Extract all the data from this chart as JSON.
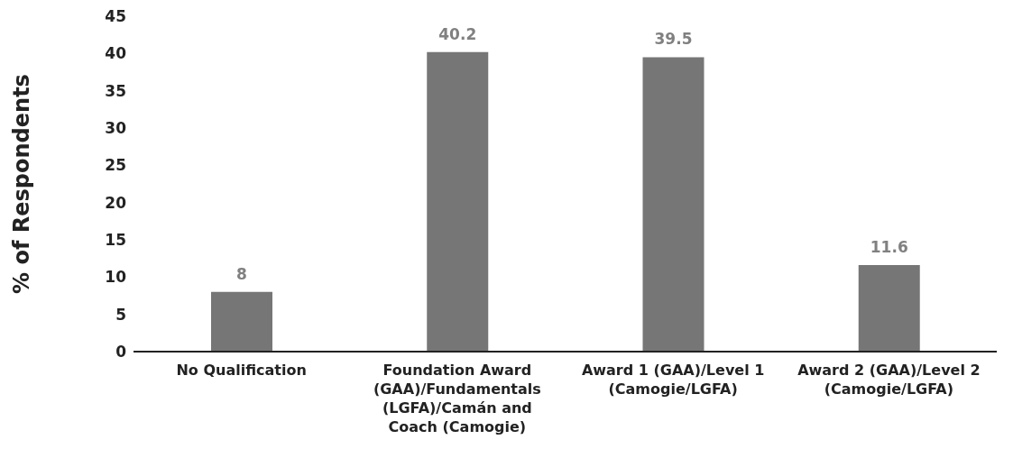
{
  "chart_data": {
    "type": "bar",
    "ylabel": "% of Respondents",
    "categories": [
      "No Qualification",
      "Foundation Award (GAA)/Fundamentals (LGFA)/Camán and Coach (Camogie)",
      "Award 1 (GAA)/Level 1 (Camogie/LGFA)",
      "Award 2 (GAA)/Level 2 (Camogie/LGFA)"
    ],
    "values": [
      8,
      40.2,
      39.5,
      11.6
    ],
    "color": "#767676",
    "ylim": [
      0,
      45
    ],
    "yticks": [
      0,
      5,
      10,
      15,
      20,
      25,
      30,
      35,
      40,
      45
    ],
    "grid": false,
    "data_labels": true
  }
}
